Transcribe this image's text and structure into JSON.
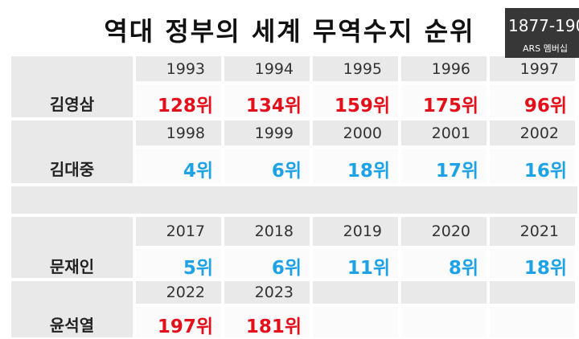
{
  "title": "역대 정부의 세계 무역수지 순위",
  "overlay": {
    "phone": "1877-190",
    "label": "ARS 멤버십"
  },
  "table": {
    "rows": [
      {
        "name": "김영삼",
        "color": "#e3101c",
        "years": [
          1993,
          1994,
          1995,
          1996,
          1997
        ],
        "ranks": [
          "128위",
          "134위",
          "159위",
          "175위",
          "96위"
        ]
      },
      {
        "name": "김대중",
        "color": "#1ea2e6",
        "years": [
          1998,
          1999,
          2000,
          2001,
          2002
        ],
        "ranks": [
          "4위",
          "6위",
          "18위",
          "17위",
          "16위"
        ]
      },
      {
        "name": "문재인",
        "color": "#1ea2e6",
        "years": [
          2017,
          2018,
          2019,
          2020,
          2021
        ],
        "ranks": [
          "5위",
          "6위",
          "11위",
          "8위",
          "18위"
        ]
      },
      {
        "name": "윤석열",
        "color": "#e3101c",
        "years": [
          2022,
          2023
        ],
        "ranks": [
          "197위",
          "181위"
        ]
      }
    ]
  }
}
